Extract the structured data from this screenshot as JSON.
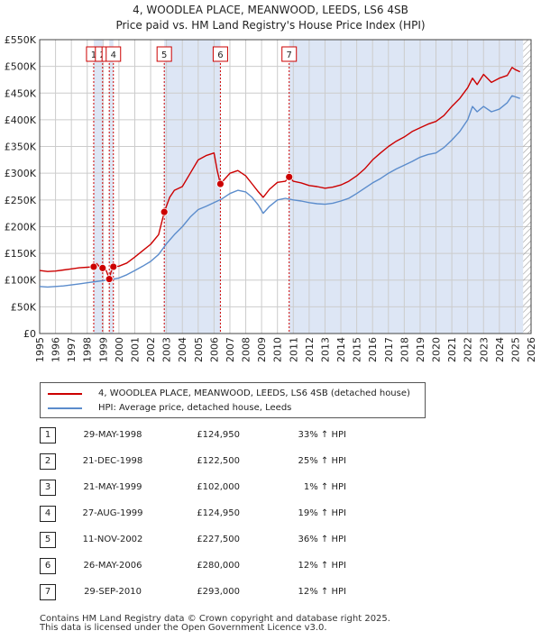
{
  "title": {
    "line1": "4, WOODLEA PLACE, MEANWOOD, LEEDS, LS6 4SB",
    "line2": "Price paid vs. HM Land Registry's House Price Index (HPI)"
  },
  "colors": {
    "property": "#cc0000",
    "hpi": "#5b8ccc",
    "shade": "#dde6f5",
    "hatch": "#999999",
    "grid": "#cccccc"
  },
  "chart_data": {
    "type": "line",
    "title": "Price paid vs. HM Land Registry's House Price Index (HPI)",
    "xlim": [
      1995,
      2026
    ],
    "ylim": [
      0,
      550000
    ],
    "x_ticks": [
      1995,
      1996,
      1997,
      1998,
      1999,
      2000,
      2001,
      2002,
      2003,
      2004,
      2005,
      2006,
      2007,
      2008,
      2009,
      2010,
      2011,
      2012,
      2013,
      2014,
      2015,
      2016,
      2017,
      2018,
      2019,
      2020,
      2021,
      2022,
      2023,
      2024,
      2025,
      2026
    ],
    "x_tick_labels": [
      "1995",
      "1996",
      "1997",
      "1998",
      "1999",
      "2000",
      "2001",
      "2002",
      "2003",
      "2004",
      "2005",
      "2006",
      "2007",
      "2008",
      "2009",
      "2010",
      "2011",
      "2012",
      "2013",
      "2014",
      "2015",
      "2016",
      "2017",
      "2018",
      "2019",
      "2020",
      "2021",
      "2022",
      "2023",
      "2024",
      "2025",
      "2026"
    ],
    "y_ticks": [
      0,
      50000,
      100000,
      150000,
      200000,
      250000,
      300000,
      350000,
      400000,
      450000,
      500000,
      550000
    ],
    "y_tick_labels": [
      "£0",
      "£50K",
      "£100K",
      "£150K",
      "£200K",
      "£250K",
      "£300K",
      "£350K",
      "£400K",
      "£450K",
      "£500K",
      "£550K"
    ],
    "shaded_ranges": [
      [
        1998.41,
        1998.97
      ],
      [
        1999.39,
        1999.65
      ],
      [
        2002.86,
        2006.4
      ],
      [
        2010.74,
        2025.5
      ]
    ],
    "forecast_start": 2025.5,
    "series": [
      {
        "name": "4, WOODLEA PLACE, MEANWOOD, LEEDS, LS6 4SB (detached house)",
        "color": "#cc0000",
        "x": [
          1995.0,
          1995.5,
          1996.0,
          1996.5,
          1997.0,
          1997.5,
          1998.0,
          1998.41,
          1998.6,
          1998.8,
          1998.97,
          1999.2,
          1999.39,
          1999.5,
          1999.65,
          2000.0,
          2000.5,
          2001.0,
          2001.5,
          2002.0,
          2002.5,
          2002.86,
          2003.2,
          2003.5,
          2004.0,
          2004.5,
          2005.0,
          2005.5,
          2006.0,
          2006.2,
          2006.4,
          2006.7,
          2007.0,
          2007.5,
          2008.0,
          2008.4,
          2008.8,
          2009.1,
          2009.5,
          2010.0,
          2010.5,
          2010.74,
          2011.0,
          2011.5,
          2012.0,
          2012.5,
          2013.0,
          2013.5,
          2014.0,
          2014.5,
          2015.0,
          2015.5,
          2016.0,
          2016.5,
          2017.0,
          2017.5,
          2018.0,
          2018.5,
          2019.0,
          2019.5,
          2020.0,
          2020.5,
          2021.0,
          2021.5,
          2022.0,
          2022.3,
          2022.6,
          2023.0,
          2023.5,
          2024.0,
          2024.5,
          2024.8,
          2025.0,
          2025.3
        ],
        "values": [
          118000,
          116000,
          117000,
          119000,
          121000,
          123000,
          124000,
          124950,
          131000,
          124000,
          122500,
          118000,
          102000,
          115000,
          124950,
          126000,
          132000,
          143000,
          155000,
          167000,
          185000,
          227500,
          255000,
          268000,
          275000,
          300000,
          325000,
          333000,
          338000,
          305000,
          280000,
          290000,
          300000,
          305000,
          295000,
          280000,
          265000,
          255000,
          270000,
          283000,
          285000,
          293000,
          285000,
          282000,
          277000,
          275000,
          272000,
          274000,
          278000,
          285000,
          295000,
          308000,
          325000,
          338000,
          350000,
          360000,
          368000,
          378000,
          385000,
          392000,
          397000,
          408000,
          425000,
          440000,
          460000,
          478000,
          466000,
          485000,
          470000,
          478000,
          483000,
          498000,
          494000,
          490000
        ]
      },
      {
        "name": "HPI: Average price, detached house, Leeds",
        "color": "#5b8ccc",
        "x": [
          1995.0,
          1995.5,
          1996.0,
          1996.5,
          1997.0,
          1997.5,
          1998.0,
          1998.5,
          1999.0,
          1999.5,
          2000.0,
          2000.5,
          2001.0,
          2001.5,
          2002.0,
          2002.5,
          2003.0,
          2003.5,
          2004.0,
          2004.5,
          2005.0,
          2005.5,
          2006.0,
          2006.5,
          2007.0,
          2007.5,
          2008.0,
          2008.4,
          2008.8,
          2009.1,
          2009.5,
          2010.0,
          2010.5,
          2011.0,
          2011.5,
          2012.0,
          2012.5,
          2013.0,
          2013.5,
          2014.0,
          2014.5,
          2015.0,
          2015.5,
          2016.0,
          2016.5,
          2017.0,
          2017.5,
          2018.0,
          2018.5,
          2019.0,
          2019.5,
          2020.0,
          2020.5,
          2021.0,
          2021.5,
          2022.0,
          2022.3,
          2022.6,
          2023.0,
          2023.5,
          2024.0,
          2024.5,
          2024.8,
          2025.0,
          2025.3
        ],
        "values": [
          88000,
          87000,
          88000,
          89000,
          91000,
          93000,
          95000,
          97000,
          99000,
          101000,
          104000,
          110000,
          118000,
          126000,
          135000,
          148000,
          168000,
          185000,
          200000,
          218000,
          232000,
          238000,
          245000,
          252000,
          262000,
          268000,
          265000,
          255000,
          240000,
          225000,
          238000,
          250000,
          253000,
          250000,
          248000,
          245000,
          243000,
          242000,
          244000,
          248000,
          253000,
          262000,
          272000,
          282000,
          290000,
          300000,
          308000,
          315000,
          322000,
          330000,
          335000,
          338000,
          348000,
          362000,
          378000,
          400000,
          425000,
          415000,
          425000,
          415000,
          420000,
          432000,
          445000,
          443000,
          440000
        ]
      }
    ],
    "transactions": [
      {
        "label": "1",
        "x": 1998.41,
        "y": 124950
      },
      {
        "label": "2",
        "x": 1998.97,
        "y": 122500
      },
      {
        "label": "3",
        "x": 1999.39,
        "y": 102000
      },
      {
        "label": "4",
        "x": 1999.65,
        "y": 124950
      },
      {
        "label": "5",
        "x": 2002.86,
        "y": 227500
      },
      {
        "label": "6",
        "x": 2006.4,
        "y": 280000
      },
      {
        "label": "7",
        "x": 2010.74,
        "y": 293000
      }
    ]
  },
  "legend": {
    "property_label": "4, WOODLEA PLACE, MEANWOOD, LEEDS, LS6 4SB (detached house)",
    "hpi_label": "HPI: Average price, detached house, Leeds"
  },
  "table": [
    {
      "num": "1",
      "date": "29-MAY-1998",
      "price": "£124,950",
      "hpi": "33% ↑ HPI"
    },
    {
      "num": "2",
      "date": "21-DEC-1998",
      "price": "£122,500",
      "hpi": "25% ↑ HPI"
    },
    {
      "num": "3",
      "date": "21-MAY-1999",
      "price": "£102,000",
      "hpi": "1% ↑ HPI"
    },
    {
      "num": "4",
      "date": "27-AUG-1999",
      "price": "£124,950",
      "hpi": "19% ↑ HPI"
    },
    {
      "num": "5",
      "date": "11-NOV-2002",
      "price": "£227,500",
      "hpi": "36% ↑ HPI"
    },
    {
      "num": "6",
      "date": "26-MAY-2006",
      "price": "£280,000",
      "hpi": "12% ↑ HPI"
    },
    {
      "num": "7",
      "date": "29-SEP-2010",
      "price": "£293,000",
      "hpi": "12% ↑ HPI"
    }
  ],
  "footer": {
    "line1": "Contains HM Land Registry data © Crown copyright and database right 2025.",
    "line2": "This data is licensed under the Open Government Licence v3.0."
  }
}
